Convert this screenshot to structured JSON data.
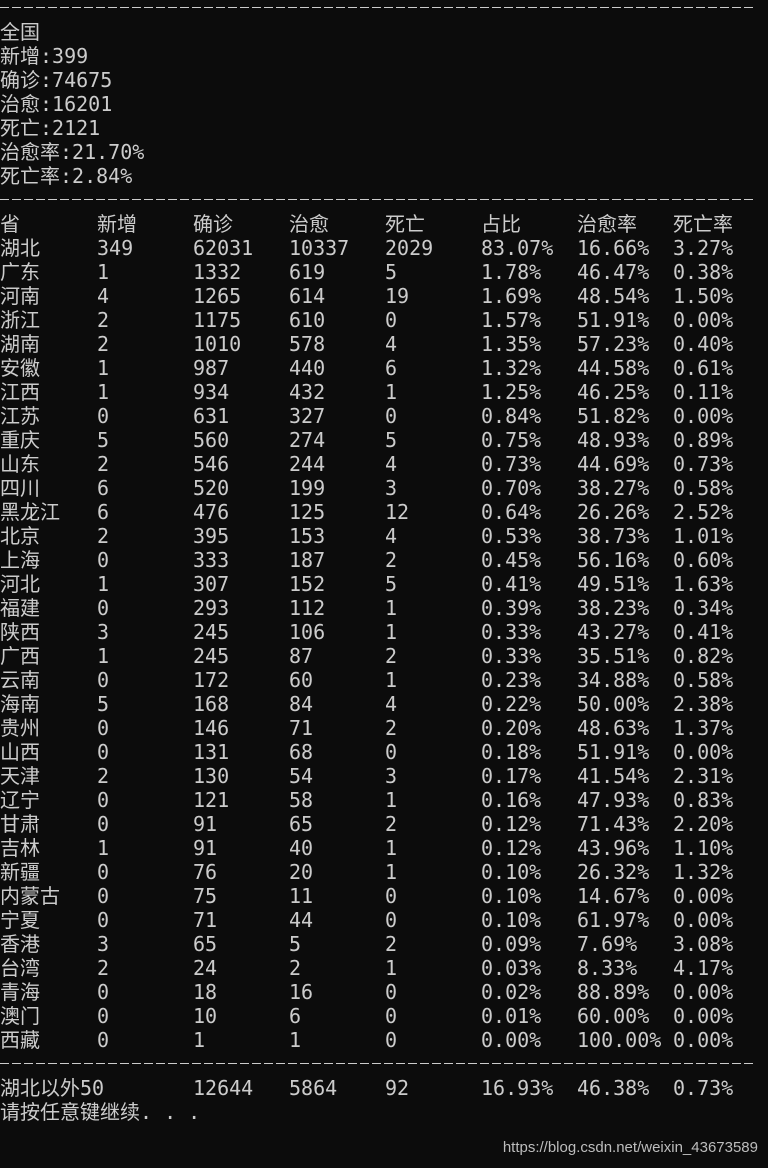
{
  "national": {
    "title": "全国",
    "new": "新增:399",
    "confirmed": "确诊:74675",
    "cured": "治愈:16201",
    "dead": "死亡:2121",
    "cure_rate": "治愈率:21.70%",
    "death_rate": "死亡率:2.84%"
  },
  "table": {
    "headers": [
      "省",
      "新增",
      "确诊",
      "治愈",
      "死亡",
      "占比",
      "治愈率",
      "死亡率"
    ],
    "rows": [
      [
        "湖北",
        "349",
        "62031",
        "10337",
        "2029",
        "83.07%",
        "16.66%",
        "3.27%"
      ],
      [
        "广东",
        "1",
        "1332",
        "619",
        "5",
        "1.78%",
        "46.47%",
        "0.38%"
      ],
      [
        "河南",
        "4",
        "1265",
        "614",
        "19",
        "1.69%",
        "48.54%",
        "1.50%"
      ],
      [
        "浙江",
        "2",
        "1175",
        "610",
        "0",
        "1.57%",
        "51.91%",
        "0.00%"
      ],
      [
        "湖南",
        "2",
        "1010",
        "578",
        "4",
        "1.35%",
        "57.23%",
        "0.40%"
      ],
      [
        "安徽",
        "1",
        "987",
        "440",
        "6",
        "1.32%",
        "44.58%",
        "0.61%"
      ],
      [
        "江西",
        "1",
        "934",
        "432",
        "1",
        "1.25%",
        "46.25%",
        "0.11%"
      ],
      [
        "江苏",
        "0",
        "631",
        "327",
        "0",
        "0.84%",
        "51.82%",
        "0.00%"
      ],
      [
        "重庆",
        "5",
        "560",
        "274",
        "5",
        "0.75%",
        "48.93%",
        "0.89%"
      ],
      [
        "山东",
        "2",
        "546",
        "244",
        "4",
        "0.73%",
        "44.69%",
        "0.73%"
      ],
      [
        "四川",
        "6",
        "520",
        "199",
        "3",
        "0.70%",
        "38.27%",
        "0.58%"
      ],
      [
        "黑龙江",
        "6",
        "476",
        "125",
        "12",
        "0.64%",
        "26.26%",
        "2.52%"
      ],
      [
        "北京",
        "2",
        "395",
        "153",
        "4",
        "0.53%",
        "38.73%",
        "1.01%"
      ],
      [
        "上海",
        "0",
        "333",
        "187",
        "2",
        "0.45%",
        "56.16%",
        "0.60%"
      ],
      [
        "河北",
        "1",
        "307",
        "152",
        "5",
        "0.41%",
        "49.51%",
        "1.63%"
      ],
      [
        "福建",
        "0",
        "293",
        "112",
        "1",
        "0.39%",
        "38.23%",
        "0.34%"
      ],
      [
        "陕西",
        "3",
        "245",
        "106",
        "1",
        "0.33%",
        "43.27%",
        "0.41%"
      ],
      [
        "广西",
        "1",
        "245",
        "87",
        "2",
        "0.33%",
        "35.51%",
        "0.82%"
      ],
      [
        "云南",
        "0",
        "172",
        "60",
        "1",
        "0.23%",
        "34.88%",
        "0.58%"
      ],
      [
        "海南",
        "5",
        "168",
        "84",
        "4",
        "0.22%",
        "50.00%",
        "2.38%"
      ],
      [
        "贵州",
        "0",
        "146",
        "71",
        "2",
        "0.20%",
        "48.63%",
        "1.37%"
      ],
      [
        "山西",
        "0",
        "131",
        "68",
        "0",
        "0.18%",
        "51.91%",
        "0.00%"
      ],
      [
        "天津",
        "2",
        "130",
        "54",
        "3",
        "0.17%",
        "41.54%",
        "2.31%"
      ],
      [
        "辽宁",
        "0",
        "121",
        "58",
        "1",
        "0.16%",
        "47.93%",
        "0.83%"
      ],
      [
        "甘肃",
        "0",
        "91",
        "65",
        "2",
        "0.12%",
        "71.43%",
        "2.20%"
      ],
      [
        "吉林",
        "1",
        "91",
        "40",
        "1",
        "0.12%",
        "43.96%",
        "1.10%"
      ],
      [
        "新疆",
        "0",
        "76",
        "20",
        "1",
        "0.10%",
        "26.32%",
        "1.32%"
      ],
      [
        "内蒙古",
        "0",
        "75",
        "11",
        "0",
        "0.10%",
        "14.67%",
        "0.00%"
      ],
      [
        "宁夏",
        "0",
        "71",
        "44",
        "0",
        "0.10%",
        "61.97%",
        "0.00%"
      ],
      [
        "香港",
        "3",
        "65",
        "5",
        "2",
        "0.09%",
        "7.69%",
        "3.08%"
      ],
      [
        "台湾",
        "2",
        "24",
        "2",
        "1",
        "0.03%",
        "8.33%",
        "4.17%"
      ],
      [
        "青海",
        "0",
        "18",
        "16",
        "0",
        "0.02%",
        "88.89%",
        "0.00%"
      ],
      [
        "澳门",
        "0",
        "10",
        "6",
        "0",
        "0.01%",
        "60.00%",
        "0.00%"
      ],
      [
        "西藏",
        "0",
        "1",
        "1",
        "0",
        "0.00%",
        "100.00%",
        "0.00%"
      ]
    ],
    "outside_hubei": [
      "湖北以外50",
      "12644",
      "5864",
      "92",
      "16.93%",
      "46.38%",
      "0.73%"
    ]
  },
  "prompt": "请按任意键继续. . .",
  "watermark": "https://blog.csdn.net/weixin_43673589"
}
